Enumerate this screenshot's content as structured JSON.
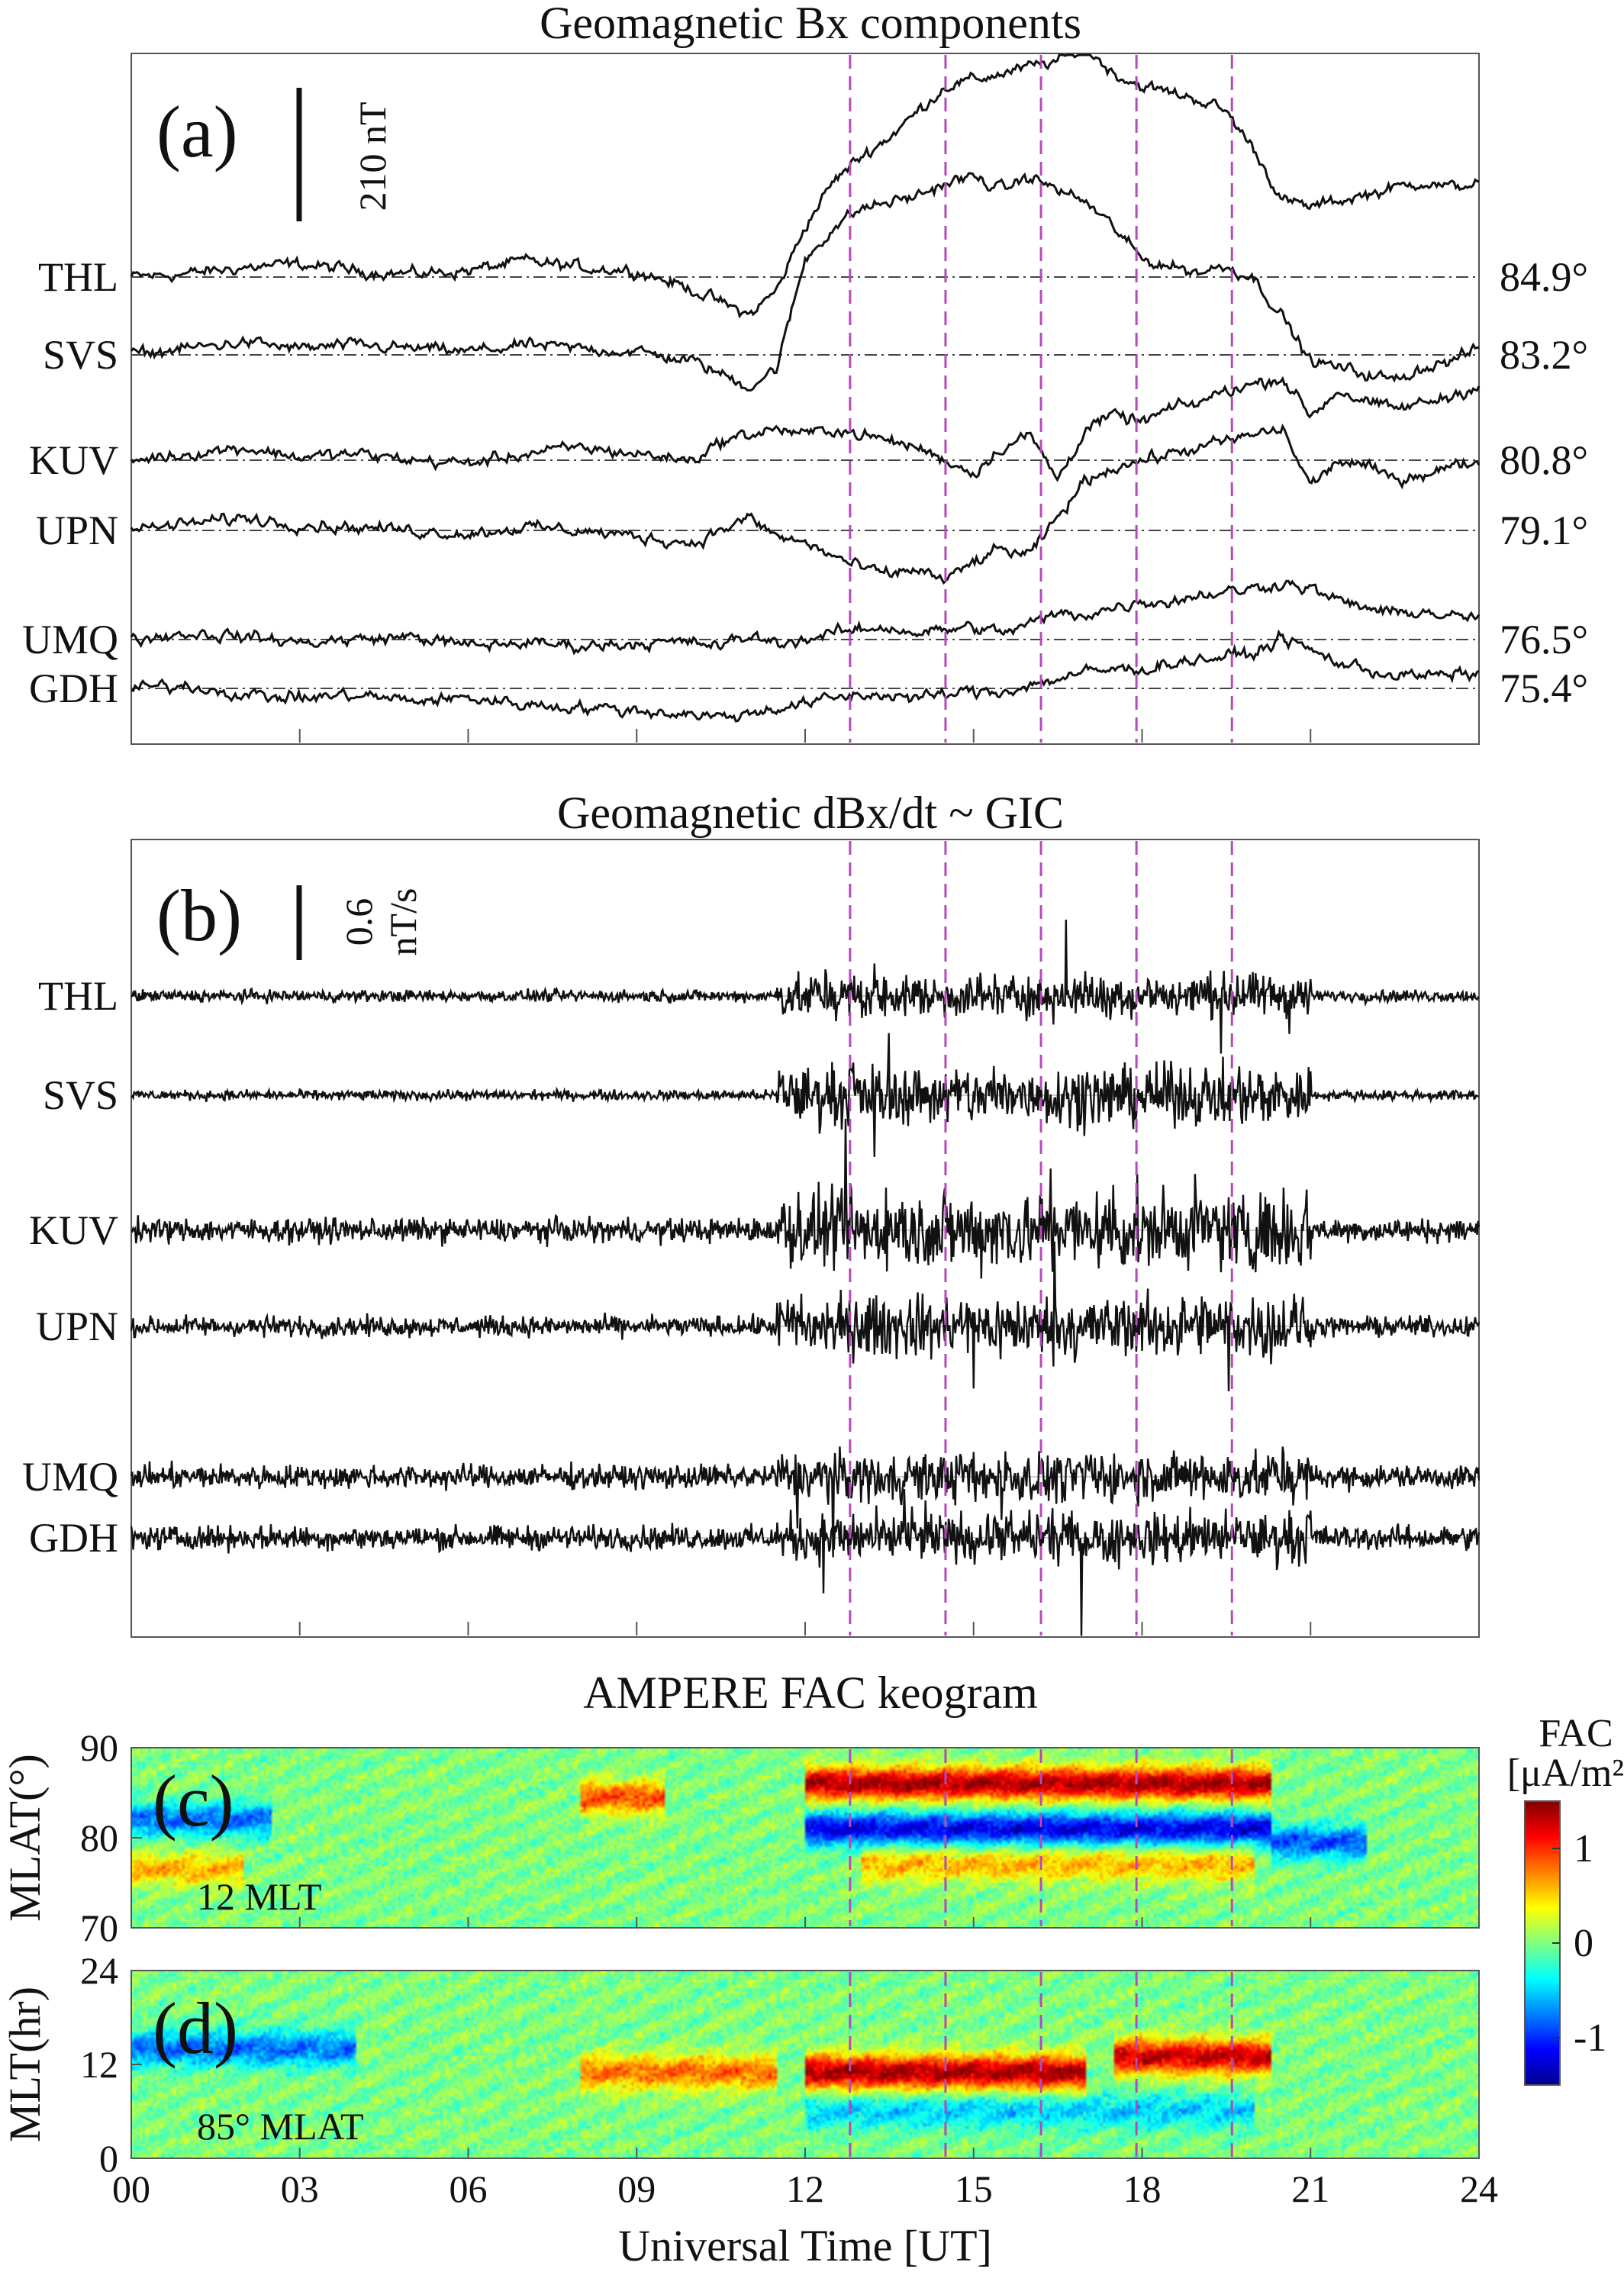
{
  "chart_data": [
    {
      "id": "a",
      "type": "line",
      "title": "Geomagnetic Bx components",
      "panel_label": "(a)",
      "scale_bar": "210 nT",
      "xlim": [
        0,
        24
      ],
      "stations": [
        {
          "name": "THL",
          "mlat": "84.9°"
        },
        {
          "name": "SVS",
          "mlat": "83.2°"
        },
        {
          "name": "KUV",
          "mlat": "80.8°"
        },
        {
          "name": "UPN",
          "mlat": "79.1°"
        },
        {
          "name": "UMQ",
          "mlat": "76.5°"
        },
        {
          "name": "GDH",
          "mlat": "75.4°"
        }
      ],
      "series": [
        {
          "name": "THL",
          "x": [
            0,
            1,
            2,
            3,
            4,
            5,
            6,
            7,
            8,
            9,
            10,
            10.5,
            11,
            11.5,
            12,
            12.5,
            13,
            13.5,
            14,
            14.5,
            15,
            15.5,
            16,
            16.5,
            17,
            17.5,
            18,
            18.5,
            19,
            19.5,
            20,
            20.5,
            21,
            21.5,
            22,
            22.5,
            23,
            23.5,
            24
          ],
          "values": [
            0,
            5,
            15,
            20,
            10,
            5,
            10,
            25,
            15,
            10,
            -20,
            -40,
            -60,
            -20,
            80,
            150,
            190,
            220,
            260,
            300,
            310,
            320,
            330,
            340,
            360,
            320,
            300,
            290,
            280,
            260,
            200,
            120,
            110,
            120,
            130,
            140,
            150,
            140,
            150
          ]
        },
        {
          "name": "SVS",
          "x": [
            0,
            1,
            2,
            3,
            4,
            5,
            6,
            7,
            8,
            9,
            10,
            10.5,
            11,
            11.5,
            12,
            12.5,
            13,
            13.5,
            14,
            14.5,
            15,
            15.5,
            16,
            16.5,
            17,
            17.5,
            18,
            18.5,
            19,
            19.5,
            20,
            20.5,
            21,
            21.5,
            22,
            22.5,
            23,
            23.5,
            24
          ],
          "values": [
            0,
            10,
            20,
            10,
            15,
            10,
            5,
            15,
            10,
            5,
            -10,
            -30,
            -50,
            -20,
            150,
            200,
            230,
            240,
            250,
            270,
            280,
            260,
            280,
            260,
            240,
            200,
            150,
            140,
            130,
            140,
            120,
            60,
            -10,
            -20,
            -30,
            -40,
            -20,
            -10,
            10
          ]
        },
        {
          "name": "KUV",
          "x": [
            0,
            1,
            2,
            3,
            4,
            5,
            6,
            7,
            8,
            9,
            10,
            10.5,
            11,
            11.5,
            12,
            12.5,
            13,
            13.5,
            14,
            14.5,
            15,
            15.5,
            16,
            16.5,
            17,
            17.5,
            18,
            18.5,
            19,
            19.5,
            20,
            20.5,
            21,
            21.5,
            22,
            22.5,
            23,
            23.5,
            24
          ],
          "values": [
            0,
            10,
            20,
            5,
            10,
            0,
            -5,
            10,
            20,
            10,
            0,
            30,
            40,
            50,
            40,
            50,
            40,
            30,
            20,
            0,
            -20,
            20,
            40,
            -30,
            50,
            70,
            60,
            80,
            90,
            110,
            120,
            130,
            70,
            110,
            90,
            80,
            90,
            100,
            120
          ]
        },
        {
          "name": "UPN",
          "x": [
            0,
            1,
            2,
            3,
            4,
            5,
            6,
            7,
            8,
            9,
            10,
            10.5,
            11,
            11.5,
            12,
            12.5,
            13,
            13.5,
            14,
            14.5,
            15,
            15.5,
            16,
            16.5,
            17,
            17.5,
            18,
            18.5,
            19,
            19.5,
            20,
            20.5,
            21,
            21.5,
            22,
            22.5,
            23,
            23.5,
            24
          ],
          "values": [
            0,
            10,
            20,
            10,
            5,
            0,
            -5,
            5,
            0,
            -10,
            -20,
            0,
            20,
            -10,
            -20,
            -40,
            -60,
            -70,
            -60,
            -80,
            -50,
            -30,
            -40,
            20,
            80,
            100,
            110,
            120,
            130,
            140,
            150,
            160,
            70,
            110,
            100,
            80,
            90,
            100,
            110
          ]
        },
        {
          "name": "UMQ",
          "x": [
            0,
            1,
            2,
            3,
            4,
            5,
            6,
            7,
            8,
            9,
            10,
            10.5,
            11,
            11.5,
            12,
            12.5,
            13,
            13.5,
            14,
            14.5,
            15,
            15.5,
            16,
            16.5,
            17,
            17.5,
            18,
            18.5,
            19,
            19.5,
            20,
            20.5,
            21,
            21.5,
            22,
            22.5,
            23,
            23.5,
            24
          ],
          "values": [
            0,
            10,
            5,
            -5,
            0,
            5,
            -10,
            -5,
            -10,
            -5,
            -5,
            -10,
            5,
            -5,
            0,
            10,
            15,
            20,
            10,
            15,
            20,
            10,
            25,
            40,
            40,
            50,
            60,
            60,
            70,
            75,
            80,
            90,
            80,
            60,
            50,
            40,
            45,
            35,
            35
          ]
        },
        {
          "name": "GDH",
          "x": [
            0,
            1,
            2,
            3,
            4,
            5,
            6,
            7,
            8,
            9,
            10,
            10.5,
            11,
            11.5,
            12,
            12.5,
            13,
            13.5,
            14,
            14.5,
            15,
            15.5,
            16,
            16.5,
            17,
            17.5,
            18,
            18.5,
            19,
            19.5,
            20,
            20.5,
            21,
            21.5,
            22,
            22.5,
            23,
            23.5,
            24
          ],
          "values": [
            0,
            5,
            -10,
            -15,
            -10,
            -20,
            -15,
            -25,
            -30,
            -35,
            -40,
            -45,
            -40,
            -30,
            -25,
            -15,
            -10,
            -10,
            -15,
            -10,
            -5,
            -5,
            5,
            15,
            25,
            30,
            30,
            40,
            45,
            50,
            55,
            80,
            60,
            40,
            30,
            20,
            20,
            20,
            25
          ]
        }
      ],
      "event_times": [
        12.8,
        14.5,
        16.2,
        17.9,
        19.6
      ]
    },
    {
      "id": "b",
      "type": "line",
      "title": "Geomagnetic dBx/dt ~ GIC",
      "panel_label": "(b)",
      "scale_bar": [
        "0.6",
        "nT/s"
      ],
      "xlim": [
        0,
        24
      ],
      "stations": [
        "THL",
        "SVS",
        "KUV",
        "UPN",
        "UMQ",
        "GDH"
      ],
      "noise_amplitude_nT_s": {
        "THL": {
          "quiet": 0.06,
          "active": 0.22
        },
        "SVS": {
          "quiet": 0.05,
          "active": 0.3
        },
        "KUV": {
          "quiet": 0.12,
          "active": 0.4
        },
        "UPN": {
          "quiet": 0.1,
          "active": 0.32
        },
        "UMQ": {
          "quiet": 0.12,
          "active": 0.25
        },
        "GDH": {
          "quiet": 0.12,
          "active": 0.25
        }
      },
      "active_interval": [
        11.5,
        21.0
      ],
      "event_times": [
        12.8,
        14.5,
        16.2,
        17.9,
        19.6
      ]
    },
    {
      "id": "c",
      "type": "heatmap",
      "title": "AMPERE FAC keogram",
      "panel_label": "(c)",
      "annotation": "12 MLT",
      "ylabel": "MLAT(°)",
      "ylim": [
        70,
        90
      ],
      "yticks": [
        "70",
        "80",
        "90"
      ],
      "bands": [
        {
          "x_start": 0,
          "x_end": 2.5,
          "mlat": 82.0,
          "value": -0.8
        },
        {
          "x_start": 0,
          "x_end": 2.0,
          "mlat": 76.5,
          "value": 0.6
        },
        {
          "x_start": 8.0,
          "x_end": 9.5,
          "mlat": 84.5,
          "value": 0.9
        },
        {
          "x_start": 12.0,
          "x_end": 20.3,
          "mlat": 86.0,
          "value": 1.4
        },
        {
          "x_start": 12.0,
          "x_end": 20.3,
          "mlat": 81.0,
          "value": -1.2
        },
        {
          "x_start": 13.0,
          "x_end": 20.0,
          "mlat": 77.0,
          "value": 0.6
        },
        {
          "x_start": 20.3,
          "x_end": 22.0,
          "mlat": 79.5,
          "value": -0.9
        }
      ],
      "event_times": [
        12.8,
        14.5,
        16.2,
        17.9,
        19.6
      ]
    },
    {
      "id": "d",
      "type": "heatmap",
      "title": "",
      "panel_label": "(d)",
      "annotation": "85° MLAT",
      "ylabel": "MLT(hr)",
      "ylim": [
        0,
        24
      ],
      "yticks": [
        "0",
        "12",
        "24"
      ],
      "bands": [
        {
          "x_start": 0,
          "x_end": 4.0,
          "mlt": 14.0,
          "value": -0.8
        },
        {
          "x_start": 8.0,
          "x_end": 11.5,
          "mlt": 11.0,
          "value": 0.8
        },
        {
          "x_start": 12.0,
          "x_end": 17.0,
          "mlt": 11.0,
          "value": 1.4
        },
        {
          "x_start": 17.5,
          "x_end": 20.3,
          "mlt": 13.0,
          "value": 1.3
        },
        {
          "x_start": 12.0,
          "x_end": 20.0,
          "mlt": 6.0,
          "value": -0.5
        }
      ],
      "event_times": [
        12.8,
        14.5,
        16.2,
        17.9,
        19.6
      ]
    }
  ],
  "xaxis": {
    "xlabel": "Universal Time [UT]",
    "xlim": [
      0,
      24
    ],
    "ticks": [
      {
        "v": 0,
        "label": "00"
      },
      {
        "v": 3,
        "label": "03"
      },
      {
        "v": 6,
        "label": "06"
      },
      {
        "v": 9,
        "label": "09"
      },
      {
        "v": 12,
        "label": "12"
      },
      {
        "v": 15,
        "label": "15"
      },
      {
        "v": 18,
        "label": "18"
      },
      {
        "v": 21,
        "label": "21"
      },
      {
        "v": 24,
        "label": "24"
      }
    ]
  },
  "colorbar": {
    "label_line1": "FAC",
    "label_line2": "[μA/m²]",
    "range": [
      -1.5,
      1.5
    ],
    "ticks": [
      {
        "v": 1,
        "label": "1"
      },
      {
        "v": 0,
        "label": "0"
      },
      {
        "v": -1,
        "label": "-1"
      }
    ],
    "colormap": "jet"
  },
  "colors": {
    "trace": "#111111",
    "event_line": "#b44bb8",
    "axis": "#555555",
    "grid_dash": "#444444"
  }
}
